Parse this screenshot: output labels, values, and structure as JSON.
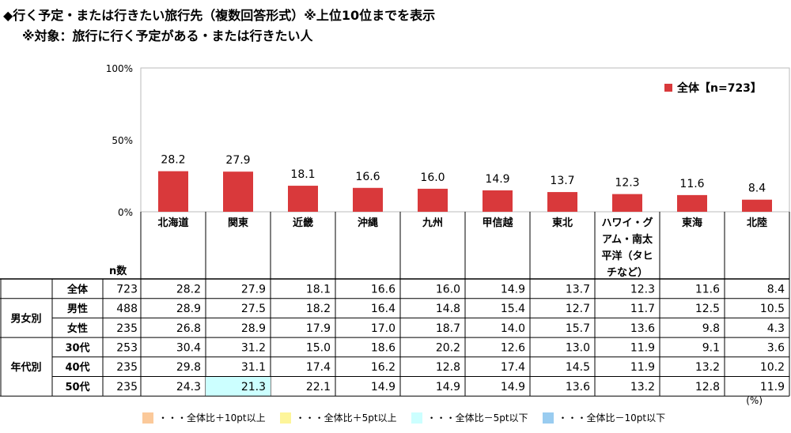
{
  "title_line1": "◆行く予定・または行きたい旅行先（複数回答形式）※上位10位までを表示",
  "title_line2": "※対象：旅行に行く予定がある・または行きたい人",
  "unit": "(%)",
  "table": {
    "n_header": "n数",
    "group_labels": [
      "男女別",
      "年代別"
    ],
    "rows": [
      {
        "group": "",
        "label": "全体",
        "n": "723",
        "values": [
          "28.2",
          "27.9",
          "18.1",
          "16.6",
          "16.0",
          "14.9",
          "13.7",
          "12.3",
          "11.6",
          "8.4"
        ]
      },
      {
        "group": "男女別",
        "label": "男性",
        "n": "488",
        "values": [
          "28.9",
          "27.5",
          "18.2",
          "16.4",
          "14.8",
          "15.4",
          "12.7",
          "11.7",
          "12.5",
          "10.5"
        ]
      },
      {
        "group": "男女別",
        "label": "女性",
        "n": "235",
        "values": [
          "26.8",
          "28.9",
          "17.9",
          "17.0",
          "18.7",
          "14.0",
          "15.7",
          "13.6",
          "9.8",
          "4.3"
        ]
      },
      {
        "group": "年代別",
        "label": "30代",
        "n": "253",
        "values": [
          "30.4",
          "31.2",
          "15.0",
          "18.6",
          "20.2",
          "12.6",
          "13.0",
          "11.9",
          "9.1",
          "3.6"
        ]
      },
      {
        "group": "年代別",
        "label": "40代",
        "n": "235",
        "values": [
          "29.8",
          "31.1",
          "17.4",
          "16.2",
          "12.8",
          "17.4",
          "14.5",
          "11.9",
          "13.2",
          "10.2"
        ]
      },
      {
        "group": "年代別",
        "label": "50代",
        "n": "235",
        "values": [
          "24.3",
          "21.3",
          "22.1",
          "14.9",
          "14.9",
          "14.9",
          "13.6",
          "13.2",
          "12.8",
          "11.9"
        ]
      }
    ],
    "highlights": [
      {
        "row": 5,
        "col": 1,
        "color": "#ccffff"
      }
    ]
  },
  "bottom_legend": [
    {
      "label": "・・・全体比＋10pt以上",
      "color": "#fbc99a"
    },
    {
      "label": "・・・全体比＋5pt以上",
      "color": "#fdf59a"
    },
    {
      "label": "・・・全体比－5pt以下",
      "color": "#ccffff"
    },
    {
      "label": "・・・全体比－10pt以下",
      "color": "#99ccf0"
    }
  ],
  "chart_data": {
    "type": "bar",
    "categories": [
      "北海道",
      "関東",
      "近畿",
      "沖縄",
      "九州",
      "甲信越",
      "東北",
      "ハワイ・グアム・南太平洋（タヒチなど）",
      "東海",
      "北陸"
    ],
    "category_display_lines": [
      [
        "北海道"
      ],
      [
        "関東"
      ],
      [
        "近畿"
      ],
      [
        "沖縄"
      ],
      [
        "九州"
      ],
      [
        "甲信越"
      ],
      [
        "東北"
      ],
      [
        "ハワイ・グ",
        "アム・南太",
        "平洋（タヒ",
        "チなど）"
      ],
      [
        "東海"
      ],
      [
        "北陸"
      ]
    ],
    "series": [
      {
        "name": "全体【n=723】",
        "values": [
          28.2,
          27.9,
          18.1,
          16.6,
          16.0,
          14.9,
          13.7,
          12.3,
          11.6,
          8.4
        ]
      }
    ],
    "value_labels": [
      "28.2",
      "27.9",
      "18.1",
      "16.6",
      "16.0",
      "14.9",
      "13.7",
      "12.3",
      "11.6",
      "8.4"
    ],
    "yticks": [
      "100%",
      "50%",
      "0%"
    ],
    "ylim": [
      0,
      100
    ],
    "grid": false,
    "legend_position": "top-right",
    "bar_color": "#d9393b"
  }
}
